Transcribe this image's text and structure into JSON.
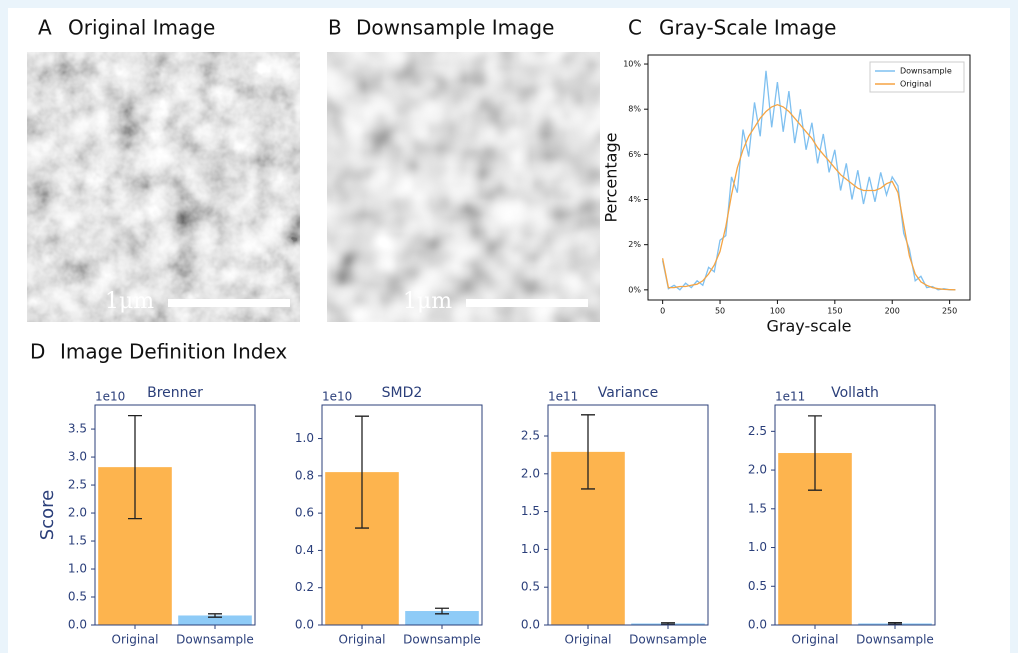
{
  "panels": [
    {
      "letter": "A",
      "title": "Original Image"
    },
    {
      "letter": "B",
      "title": "Downsample Image"
    },
    {
      "letter": "C",
      "title": "Gray-Scale Image"
    },
    {
      "letter": "D",
      "title": "Image Definition Index"
    }
  ],
  "images": [
    {
      "scale_bar": "1μm"
    },
    {
      "scale_bar": "1μm"
    }
  ],
  "chart_data": [
    {
      "type": "line",
      "xlabel": "Gray-scale",
      "ylabel": "Percentage",
      "legend": "upper right",
      "x": [
        0,
        5,
        10,
        15,
        20,
        25,
        30,
        35,
        40,
        45,
        50,
        55,
        60,
        65,
        70,
        75,
        80,
        85,
        90,
        95,
        100,
        105,
        110,
        115,
        120,
        125,
        130,
        135,
        140,
        145,
        150,
        155,
        160,
        165,
        170,
        175,
        180,
        185,
        190,
        195,
        200,
        205,
        210,
        215,
        220,
        225,
        230,
        235,
        240,
        245,
        250,
        255
      ],
      "series": [
        {
          "name": "Downsample",
          "color": "#7fc0f0",
          "values": [
            1.3,
            0.05,
            0.2,
            0.0,
            0.3,
            0.1,
            0.4,
            0.2,
            1.0,
            0.8,
            2.2,
            2.4,
            5.0,
            4.3,
            7.1,
            5.9,
            8.3,
            6.8,
            9.7,
            7.2,
            9.2,
            7.0,
            8.8,
            6.5,
            8.0,
            6.2,
            7.4,
            5.6,
            6.9,
            5.2,
            6.2,
            4.4,
            5.6,
            4.0,
            5.3,
            3.8,
            5.0,
            3.9,
            5.2,
            4.2,
            5.0,
            4.6,
            2.5,
            1.8,
            0.4,
            0.6,
            0.1,
            0.15,
            0.0,
            0.05,
            0.0,
            0.0
          ]
        },
        {
          "name": "Original",
          "color": "#f5a443",
          "values": [
            1.4,
            0.1,
            0.1,
            0.15,
            0.15,
            0.2,
            0.25,
            0.4,
            0.7,
            1.1,
            1.7,
            2.8,
            4.2,
            5.4,
            6.2,
            6.8,
            7.2,
            7.6,
            7.9,
            8.1,
            8.2,
            8.1,
            7.9,
            7.6,
            7.3,
            7.0,
            6.7,
            6.3,
            6.0,
            5.7,
            5.4,
            5.1,
            4.9,
            4.7,
            4.5,
            4.4,
            4.4,
            4.4,
            4.5,
            4.7,
            4.8,
            4.3,
            2.9,
            1.5,
            0.7,
            0.35,
            0.2,
            0.1,
            0.05,
            0.02,
            0.01,
            0.0
          ]
        }
      ],
      "xlim": [
        -12.75,
        267.75
      ],
      "xticks": [
        0,
        50,
        100,
        150,
        200,
        250
      ],
      "ylim": [
        -0.45,
        10.4
      ],
      "yticks": [
        {
          "value": 0,
          "label": "0%"
        },
        {
          "value": 2,
          "label": "2%"
        },
        {
          "value": 4,
          "label": "4%"
        },
        {
          "value": 6,
          "label": "6%"
        },
        {
          "value": 8,
          "label": "8%"
        },
        {
          "value": 10,
          "label": "10%"
        }
      ]
    },
    {
      "type": "bar",
      "title": "Brenner",
      "offset_label": "1e10",
      "ylabel": "Score",
      "categories": [
        "Original",
        "Downsample"
      ],
      "values": [
        2.82,
        0.17
      ],
      "errors": [
        0.92,
        0.03
      ],
      "colors": [
        "#fdb44e",
        "#8ecbf7"
      ],
      "ylim": [
        0,
        3.93
      ],
      "yticks": [
        {
          "value": 0,
          "label": "0.0"
        },
        {
          "value": 0.5,
          "label": "0.5"
        },
        {
          "value": 1,
          "label": "1.0"
        },
        {
          "value": 1.5,
          "label": "1.5"
        },
        {
          "value": 2,
          "label": "2.0"
        },
        {
          "value": 2.5,
          "label": "2.5"
        },
        {
          "value": 3,
          "label": "3.0"
        },
        {
          "value": 3.5,
          "label": "3.5"
        }
      ]
    },
    {
      "type": "bar",
      "title": "SMD2",
      "offset_label": "1e10",
      "categories": [
        "Original",
        "Downsample"
      ],
      "values": [
        0.82,
        0.075
      ],
      "errors": [
        0.3,
        0.015
      ],
      "colors": [
        "#fdb44e",
        "#8ecbf7"
      ],
      "ylim": [
        0,
        1.18
      ],
      "yticks": [
        {
          "value": 0,
          "label": "0.0"
        },
        {
          "value": 0.2,
          "label": "0.2"
        },
        {
          "value": 0.4,
          "label": "0.4"
        },
        {
          "value": 0.6,
          "label": "0.6"
        },
        {
          "value": 0.8,
          "label": "0.8"
        },
        {
          "value": 1,
          "label": "1.0"
        }
      ]
    },
    {
      "type": "bar",
      "title": "Variance",
      "offset_label": "1e11",
      "categories": [
        "Original",
        "Downsample"
      ],
      "values": [
        2.29,
        0.02
      ],
      "errors": [
        0.49,
        0.01
      ],
      "colors": [
        "#fdb44e",
        "#8ecbf7"
      ],
      "ylim": [
        0,
        2.91
      ],
      "yticks": [
        {
          "value": 0,
          "label": "0.0"
        },
        {
          "value": 0.5,
          "label": "0.5"
        },
        {
          "value": 1,
          "label": "1.0"
        },
        {
          "value": 1.5,
          "label": "1.5"
        },
        {
          "value": 2,
          "label": "2.0"
        },
        {
          "value": 2.5,
          "label": "2.5"
        }
      ]
    },
    {
      "type": "bar",
      "title": "Vollath",
      "offset_label": "1e11",
      "categories": [
        "Original",
        "Downsample"
      ],
      "values": [
        2.22,
        0.02
      ],
      "errors": [
        0.48,
        0.01
      ],
      "colors": [
        "#fdb44e",
        "#8ecbf7"
      ],
      "ylim": [
        0,
        2.84
      ],
      "yticks": [
        {
          "value": 0,
          "label": "0.0"
        },
        {
          "value": 0.5,
          "label": "0.5"
        },
        {
          "value": 1,
          "label": "1.0"
        },
        {
          "value": 1.5,
          "label": "1.5"
        },
        {
          "value": 2,
          "label": "2.0"
        },
        {
          "value": 2.5,
          "label": "2.5"
        }
      ]
    }
  ]
}
